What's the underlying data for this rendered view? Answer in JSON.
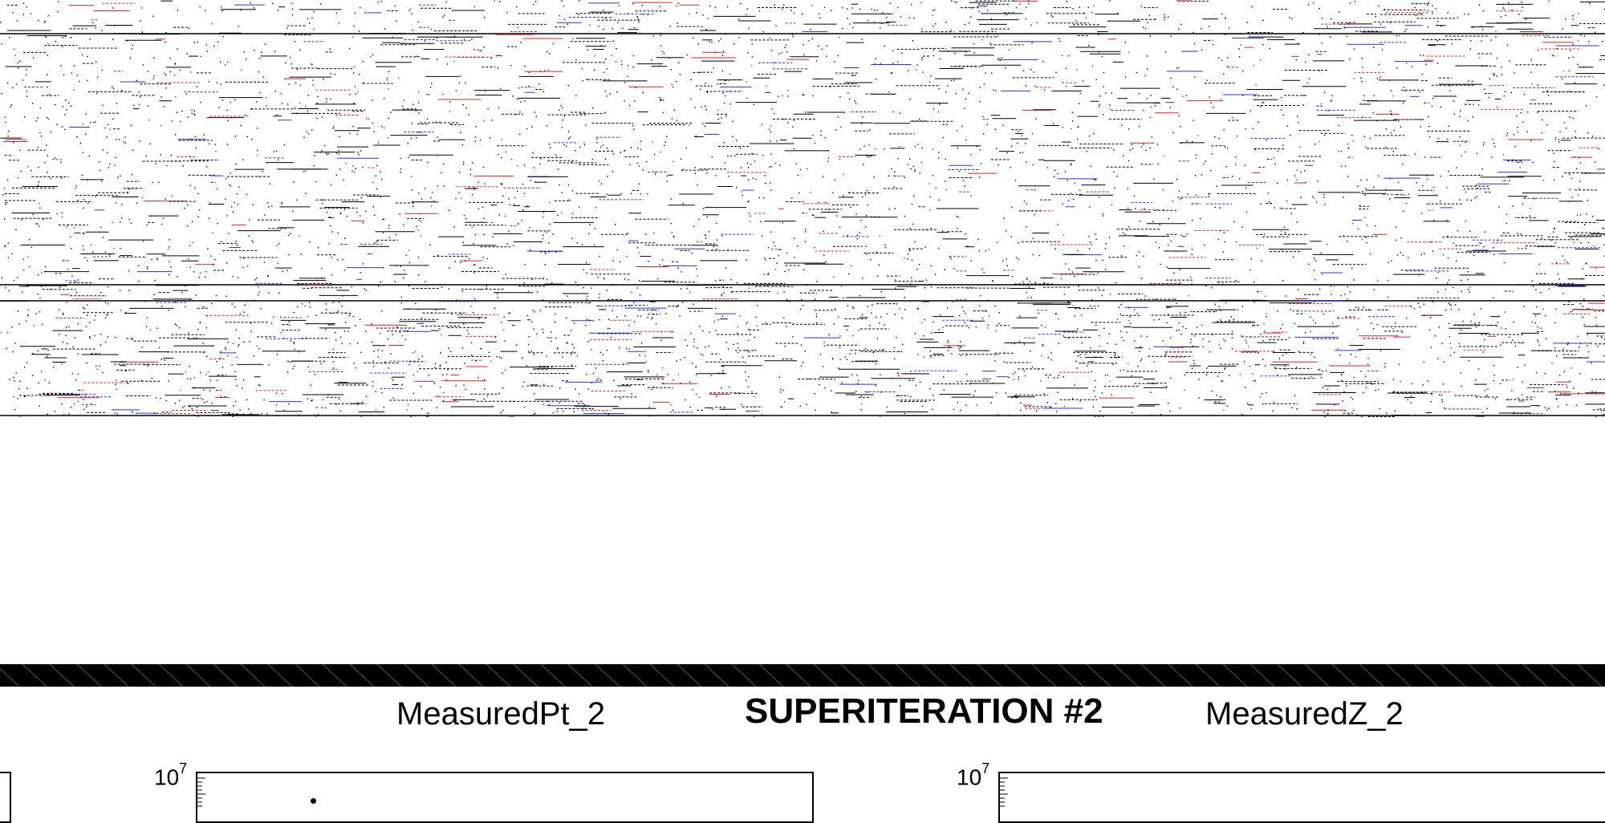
{
  "chart_data": [
    {
      "type": "scatter",
      "title": "MeasuredPt_2",
      "ylabel_exponent": "7",
      "y_tick_base": "10",
      "log_scale": true
    },
    {
      "type": "scatter",
      "title": "MeasuredZ_2",
      "ylabel_exponent": "7",
      "y_tick_base": "10",
      "log_scale": true
    }
  ],
  "figure": {
    "main_title": "SUPERITERATION #2",
    "left_title": "MeasuredPt_2",
    "right_title": "MeasuredZ_2",
    "left_tick_base": "10",
    "left_tick_exp": "7",
    "right_tick_base": "10",
    "right_tick_exp": "7"
  },
  "colors": {
    "ink": "#000000",
    "blue": "#2233dd",
    "red": "#dd2222",
    "background": "#ffffff"
  }
}
